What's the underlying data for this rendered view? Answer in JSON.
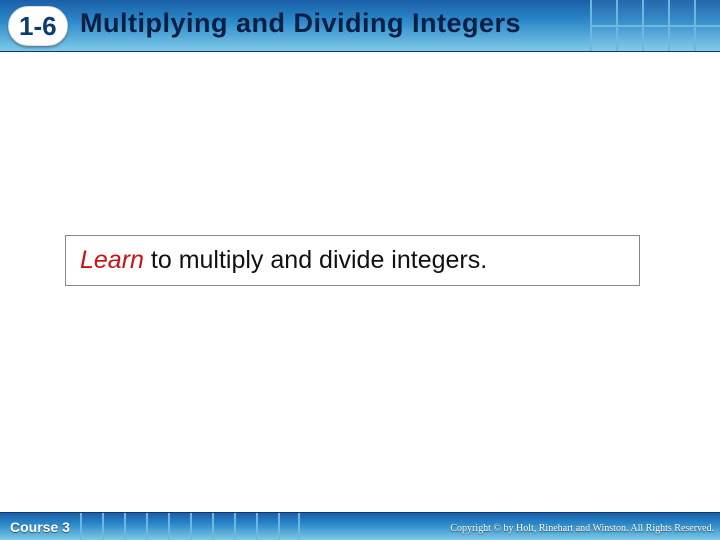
{
  "header": {
    "section_number": "1-6",
    "title": "Multiplying and Dividing Integers",
    "bg_gradient_top": "#1a5fa8",
    "bg_gradient_bottom": "#7ec9e8",
    "grid_line_color": "#6db8dc"
  },
  "objective": {
    "learn_word": "Learn",
    "rest_text": " to multiply and divide integers.",
    "learn_color": "#c81414",
    "border_color": "#888888",
    "font_size": 25
  },
  "footer": {
    "course_label": "Course 3",
    "copyright": "Copyright © by Holt, Rinehart and Winston. All Rights Reserved."
  }
}
